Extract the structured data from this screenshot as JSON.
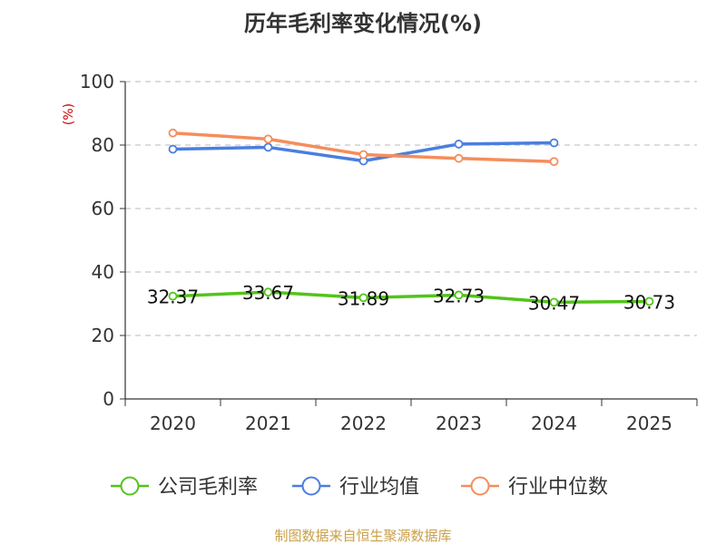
{
  "chart_data": {
    "type": "line",
    "title": "历年毛利率变化情况(%)",
    "ylabel": "(%)",
    "xlabel": "",
    "ylim": [
      0,
      100
    ],
    "yticks": [
      0,
      20,
      40,
      60,
      80,
      100
    ],
    "categories": [
      "2020",
      "2021",
      "2022",
      "2023",
      "2024",
      "2025"
    ],
    "grid": true,
    "legend_position": "bottom",
    "series": [
      {
        "name": "公司毛利率",
        "color": "#52c41a",
        "values": [
          32.37,
          33.67,
          31.89,
          32.73,
          30.47,
          30.73
        ],
        "labels": [
          "32.37",
          "33.67",
          "31.89",
          "32.73",
          "30.47",
          "30.73"
        ]
      },
      {
        "name": "行业均值",
        "color": "#4a7ee0",
        "values": [
          78.7,
          79.3,
          75.0,
          80.3,
          80.7,
          null
        ]
      },
      {
        "name": "行业中位数",
        "color": "#f58d5b",
        "values": [
          83.8,
          81.9,
          77.0,
          75.8,
          74.8,
          null
        ]
      }
    ]
  },
  "source": "制图数据来自恒生聚源数据库"
}
